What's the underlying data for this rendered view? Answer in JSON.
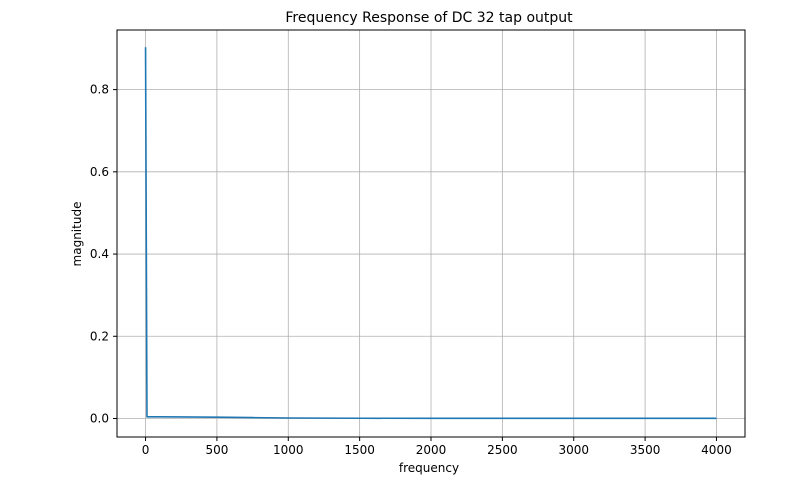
{
  "chart_data": {
    "type": "line",
    "title": "Frequency Response of DC 32 tap output",
    "xlabel": "frequency",
    "ylabel": "magnitude",
    "xlim": [
      -200,
      4200
    ],
    "ylim": [
      -0.045,
      0.945
    ],
    "x_ticks": [
      0,
      500,
      1000,
      1500,
      2000,
      2500,
      3000,
      3500,
      4000
    ],
    "y_ticks": [
      0.0,
      0.2,
      0.4,
      0.6,
      0.8
    ],
    "x_tick_labels": [
      "0",
      "500",
      "1000",
      "1500",
      "2000",
      "2500",
      "3000",
      "3500",
      "4000"
    ],
    "y_tick_labels": [
      "0.0",
      "0.2",
      "0.4",
      "0.6",
      "0.8"
    ],
    "grid": true,
    "series": [
      {
        "color": "#1f77b4",
        "x": [
          0,
          10,
          20,
          100,
          250,
          500,
          750,
          1000,
          1500,
          2000,
          2500,
          3000,
          3500,
          4000
        ],
        "y": [
          0.903,
          0.004,
          0.004,
          0.004,
          0.0038,
          0.0033,
          0.0022,
          0.0012,
          0.0006,
          0.0005,
          0.0005,
          0.0005,
          0.0005,
          0.0005
        ]
      }
    ]
  }
}
